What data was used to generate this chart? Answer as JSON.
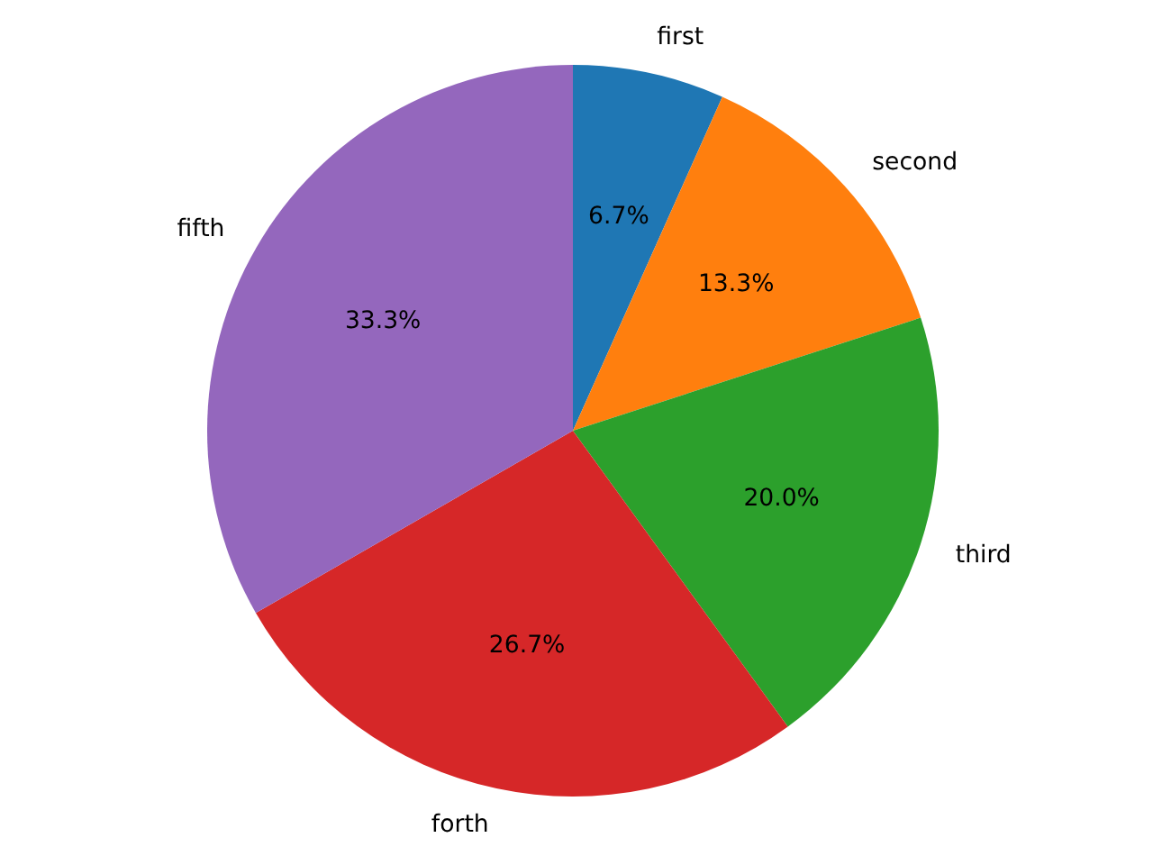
{
  "chart_data": {
    "type": "pie",
    "categories": [
      "first",
      "second",
      "third",
      "forth",
      "fifth"
    ],
    "values": [
      6.7,
      13.3,
      20.0,
      26.7,
      33.3
    ],
    "colors": [
      "#1f77b4",
      "#ff7f0e",
      "#2ca02c",
      "#d62728",
      "#9467bd"
    ],
    "value_labels": [
      "6.7%",
      "13.3%",
      "20.0%",
      "26.7%",
      "33.3%"
    ]
  }
}
